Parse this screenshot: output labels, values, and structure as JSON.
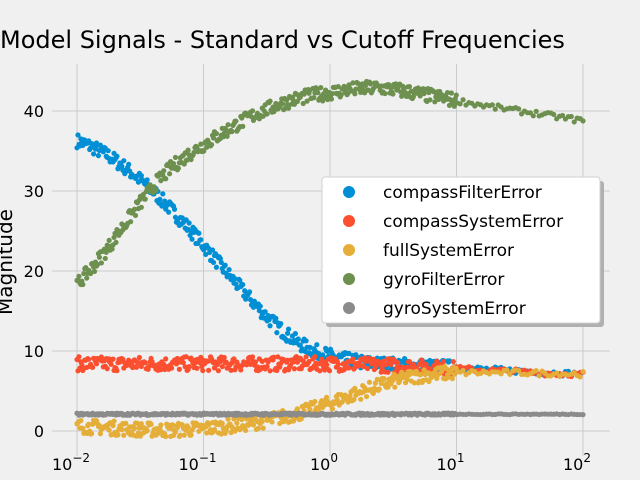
{
  "chart_data": {
    "type": "scatter",
    "title": "Model Signals - Standard vs Cutoff Frequencies",
    "ylabel": "Magnitude",
    "xscale": "log",
    "xlim": [
      0.01,
      100
    ],
    "ylim": [
      0,
      45
    ],
    "grid": true,
    "legend_position": "center-right",
    "x_ticks": [
      {
        "value": 0.01,
        "base": "10",
        "exp": "−2"
      },
      {
        "value": 0.1,
        "base": "10",
        "exp": "−1"
      },
      {
        "value": 1,
        "base": "10",
        "exp": "0"
      },
      {
        "value": 10,
        "base": "10",
        "exp": "1"
      },
      {
        "value": 100,
        "base": "10",
        "exp": "2"
      }
    ],
    "y_ticks": [
      "0",
      "10",
      "20",
      "30",
      "40"
    ],
    "series": [
      {
        "name": "compassFilterError",
        "color": "#008fd5",
        "x": [
          0.01,
          0.0133,
          0.0178,
          0.0237,
          0.0316,
          0.0422,
          0.0562,
          0.075,
          0.1,
          0.133,
          0.178,
          0.237,
          0.316,
          0.422,
          0.562,
          0.75,
          1,
          1.33,
          1.78,
          2.37,
          3.16,
          4.22,
          5.62,
          7.5,
          10,
          17.8,
          31.6,
          56.2,
          100
        ],
        "y": [
          36.3,
          35.5,
          34.4,
          33.0,
          31.4,
          29.6,
          27.6,
          25.5,
          23.2,
          20.9,
          18.6,
          16.4,
          14.3,
          12.5,
          11.0,
          10.0,
          9.4,
          8.9,
          8.6,
          8.4,
          8.3,
          8.2,
          8.1,
          8.0,
          7.9,
          7.7,
          7.5,
          7.3,
          7.1
        ]
      },
      {
        "name": "compassSystemError",
        "color": "#fc4f30",
        "x": [
          0.01,
          0.0178,
          0.0316,
          0.0562,
          0.1,
          0.178,
          0.316,
          0.562,
          1,
          1.78,
          3.16,
          5.62,
          10,
          17.8,
          31.6,
          56.2,
          100
        ],
        "y": [
          8.4,
          8.4,
          8.4,
          8.4,
          8.4,
          8.4,
          8.4,
          8.4,
          8.4,
          8.3,
          8.2,
          8.0,
          7.8,
          7.6,
          7.4,
          7.2,
          7.1
        ]
      },
      {
        "name": "fullSystemError",
        "color": "#e5ae38",
        "x": [
          0.01,
          0.0178,
          0.0316,
          0.0562,
          0.1,
          0.178,
          0.316,
          0.562,
          0.75,
          1,
          1.33,
          1.78,
          2.37,
          3.16,
          4.22,
          5.62,
          7.5,
          10,
          17.8,
          31.6,
          56.2,
          100
        ],
        "y": [
          0.6,
          0.4,
          0.2,
          0.1,
          0.3,
          0.7,
          1.3,
          2.2,
          2.8,
          3.5,
          4.2,
          4.9,
          5.6,
          6.2,
          6.7,
          7.0,
          7.2,
          7.3,
          7.3,
          7.3,
          7.2,
          7.1
        ]
      },
      {
        "name": "gyroFilterError",
        "color": "#6d904f",
        "x": [
          0.01,
          0.0133,
          0.0178,
          0.0237,
          0.0316,
          0.0422,
          0.0562,
          0.075,
          0.1,
          0.133,
          0.178,
          0.237,
          0.316,
          0.422,
          0.562,
          0.75,
          1,
          1.33,
          1.78,
          2.37,
          3.16,
          4.22,
          5.62,
          7.5,
          10,
          17.8,
          31.6,
          56.2,
          100
        ],
        "y": [
          18.3,
          20.5,
          23.0,
          25.8,
          28.5,
          31.0,
          33.0,
          34.5,
          35.8,
          37.0,
          38.2,
          39.3,
          40.2,
          41.0,
          41.6,
          42.0,
          42.3,
          42.6,
          42.8,
          42.9,
          42.7,
          42.4,
          42.0,
          41.7,
          41.3,
          40.6,
          40.0,
          39.4,
          38.8
        ]
      },
      {
        "name": "gyroSystemError",
        "color": "#8b8b8b",
        "x": [
          0.01,
          0.0316,
          0.1,
          0.316,
          1,
          3.16,
          10,
          31.6,
          100
        ],
        "y": [
          2.1,
          2.1,
          2.1,
          2.1,
          2.1,
          2.1,
          2.1,
          2.1,
          2.1
        ]
      }
    ]
  }
}
